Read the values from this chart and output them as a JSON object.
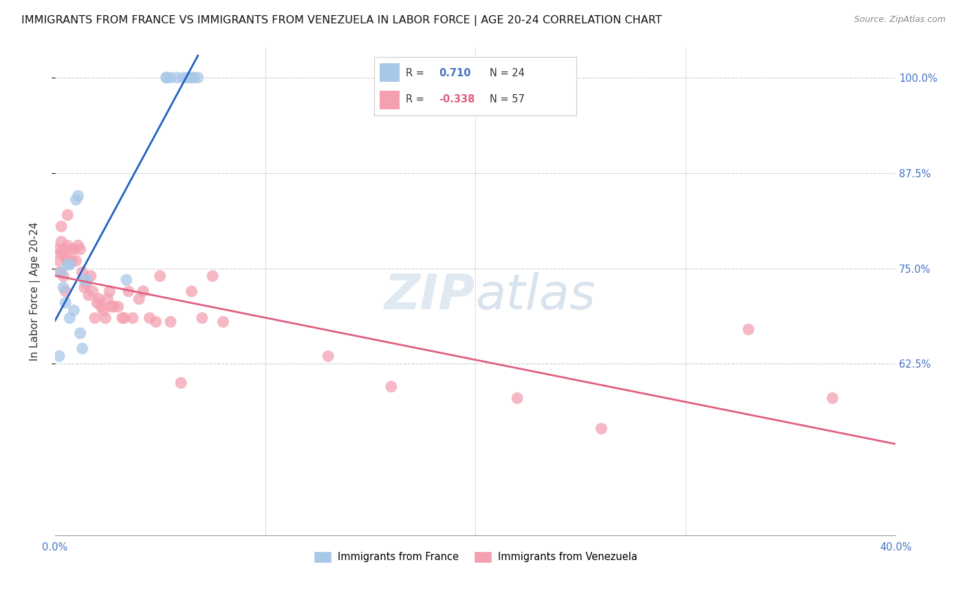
{
  "title": "IMMIGRANTS FROM FRANCE VS IMMIGRANTS FROM VENEZUELA IN LABOR FORCE | AGE 20-24 CORRELATION CHART",
  "source": "Source: ZipAtlas.com",
  "ylabel": "In Labor Force | Age 20-24",
  "xlim": [
    0.0,
    0.4
  ],
  "ylim": [
    0.4,
    1.04
  ],
  "yticks": [
    0.625,
    0.75,
    0.875,
    1.0
  ],
  "ytick_labels": [
    "62.5%",
    "75.0%",
    "87.5%",
    "100.0%"
  ],
  "xticks": [
    0.0,
    0.1,
    0.2,
    0.3,
    0.4
  ],
  "xtick_labels": [
    "0.0%",
    "",
    "",
    "",
    "40.0%"
  ],
  "france_R": 0.71,
  "france_N": 24,
  "venezuela_R": -0.338,
  "venezuela_N": 57,
  "france_color": "#a8c8e8",
  "venezuela_color": "#f4a0b0",
  "france_line_color": "#2060c0",
  "venezuela_line_color": "#e06080",
  "background_color": "#ffffff",
  "watermark_zip": "ZIP",
  "watermark_atlas": "atlas",
  "france_x": [
    0.002,
    0.003,
    0.004,
    0.005,
    0.006,
    0.007,
    0.007,
    0.009,
    0.01,
    0.011,
    0.012,
    0.013,
    0.014,
    0.015,
    0.034,
    0.053,
    0.053,
    0.055,
    0.058,
    0.061,
    0.063,
    0.065,
    0.066,
    0.068
  ],
  "france_y": [
    0.635,
    0.745,
    0.725,
    0.705,
    0.755,
    0.755,
    0.685,
    0.695,
    0.84,
    0.845,
    0.665,
    0.645,
    0.735,
    0.735,
    0.735,
    1.0,
    1.0,
    1.0,
    1.0,
    1.0,
    1.0,
    1.0,
    1.0,
    1.0
  ],
  "venezuela_x": [
    0.001,
    0.002,
    0.002,
    0.003,
    0.003,
    0.003,
    0.004,
    0.004,
    0.005,
    0.005,
    0.006,
    0.006,
    0.006,
    0.007,
    0.008,
    0.009,
    0.01,
    0.011,
    0.012,
    0.013,
    0.014,
    0.015,
    0.016,
    0.017,
    0.018,
    0.019,
    0.02,
    0.021,
    0.022,
    0.023,
    0.024,
    0.025,
    0.026,
    0.027,
    0.028,
    0.03,
    0.032,
    0.033,
    0.035,
    0.037,
    0.04,
    0.042,
    0.045,
    0.048,
    0.05,
    0.055,
    0.06,
    0.065,
    0.07,
    0.075,
    0.08,
    0.13,
    0.16,
    0.22,
    0.26,
    0.33,
    0.37
  ],
  "venezuela_y": [
    0.775,
    0.76,
    0.745,
    0.805,
    0.785,
    0.77,
    0.775,
    0.74,
    0.765,
    0.72,
    0.82,
    0.78,
    0.76,
    0.775,
    0.76,
    0.775,
    0.76,
    0.78,
    0.775,
    0.745,
    0.725,
    0.73,
    0.715,
    0.74,
    0.72,
    0.685,
    0.705,
    0.71,
    0.7,
    0.695,
    0.685,
    0.71,
    0.72,
    0.7,
    0.7,
    0.7,
    0.685,
    0.685,
    0.72,
    0.685,
    0.71,
    0.72,
    0.685,
    0.68,
    0.74,
    0.68,
    0.6,
    0.72,
    0.685,
    0.74,
    0.68,
    0.635,
    0.595,
    0.58,
    0.54,
    0.67,
    0.58
  ],
  "grid_color": "#cccccc",
  "title_fontsize": 11.5,
  "axis_label_fontsize": 11,
  "tick_fontsize": 10.5,
  "legend_fontsize": 11,
  "watermark_fontsize": 52
}
